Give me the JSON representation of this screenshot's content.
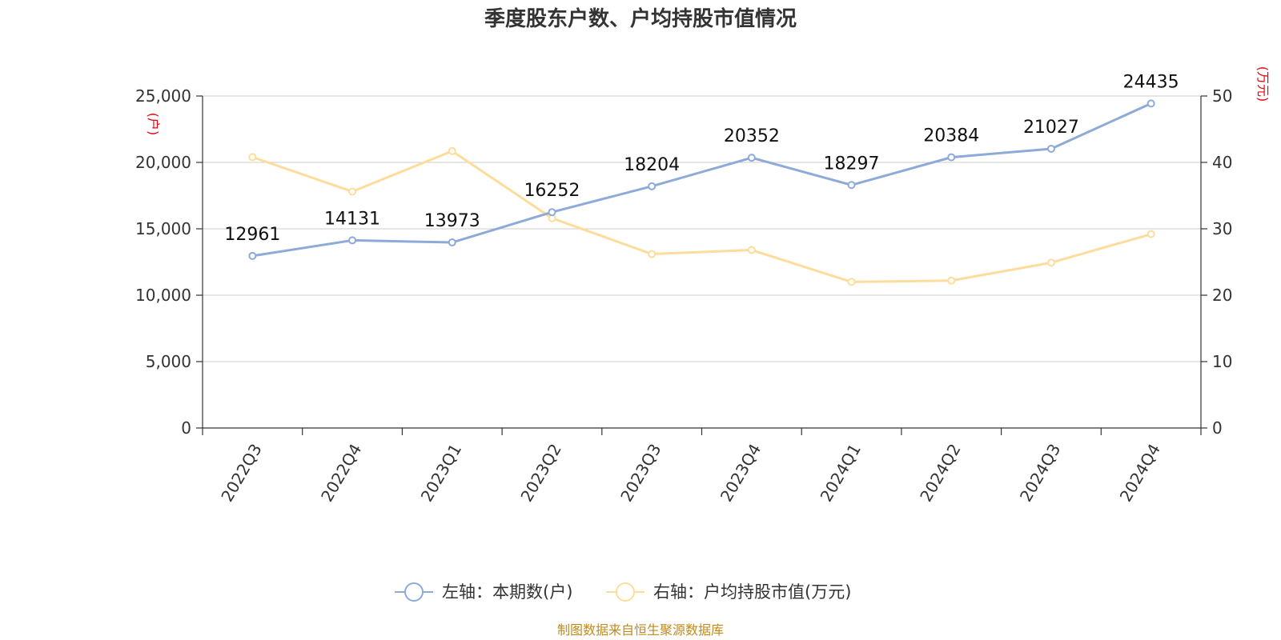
{
  "chart_data": {
    "type": "line",
    "title": "季度股东户数、户均持股市值情况",
    "categories": [
      "2022Q3",
      "2022Q4",
      "2023Q1",
      "2023Q2",
      "2023Q3",
      "2023Q4",
      "2024Q1",
      "2024Q2",
      "2024Q3",
      "2024Q4"
    ],
    "left_axis": {
      "unit": "(户)",
      "range": [
        0,
        25000
      ],
      "ticks": [
        "0",
        "5,000",
        "10,000",
        "15,000",
        "20,000",
        "25,000"
      ],
      "tick_values": [
        0,
        5000,
        10000,
        15000,
        20000,
        25000
      ]
    },
    "right_axis": {
      "unit": "(万元)",
      "range": [
        0,
        50
      ],
      "ticks": [
        "0",
        "10",
        "20",
        "30",
        "40",
        "50"
      ],
      "tick_values": [
        0,
        10,
        20,
        30,
        40,
        50
      ]
    },
    "series": [
      {
        "name": "左轴：本期数(户)",
        "axis": "left",
        "color": "#8eaad8",
        "values": [
          12961,
          14131,
          13973,
          16252,
          18204,
          20352,
          18297,
          20384,
          21027,
          24435
        ],
        "labels": [
          "12961",
          "14131",
          "13973",
          "16252",
          "18204",
          "20352",
          "18297",
          "20384",
          "21027",
          "24435"
        ]
      },
      {
        "name": "右轴：户均持股市值(万元)",
        "axis": "right",
        "color": "#fddc9c",
        "values": [
          40.8,
          35.6,
          41.7,
          31.6,
          26.2,
          26.8,
          22.0,
          22.2,
          24.9,
          29.2
        ]
      }
    ],
    "grid": true,
    "legend": "bottom-center"
  },
  "source": "制图数据来自恒生聚源数据库"
}
